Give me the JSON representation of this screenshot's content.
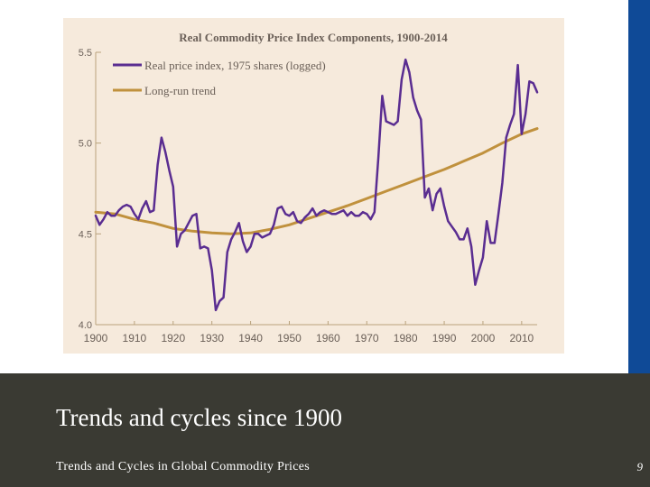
{
  "slide": {
    "title": "Trends and cycles since 1900",
    "subtitle": "Trends and Cycles in Global Commodity Prices",
    "page_number": "9"
  },
  "colors": {
    "panel_bg": "#f6eadc",
    "footer_bg": "#3a3a33",
    "accent_bar": "#0f4a97",
    "series_real": "#5a2d91",
    "series_trend": "#c0913d",
    "axis": "#b9a27c",
    "tick_text": "#6b6058"
  },
  "chart_data": {
    "type": "line",
    "title": "Real Commodity Price Index Components, 1900-2014",
    "xlabel": "",
    "ylabel": "",
    "xlim": [
      1900,
      2014
    ],
    "ylim": [
      4.0,
      5.5
    ],
    "xticks": [
      1900,
      1910,
      1920,
      1930,
      1940,
      1950,
      1960,
      1970,
      1980,
      1990,
      2000,
      2010
    ],
    "yticks": [
      4.0,
      4.5,
      5.0,
      5.5
    ],
    "ytick_labels": [
      "4.0",
      "4.5",
      "5.0",
      "5.5"
    ],
    "grid": false,
    "legend_position": "top-left",
    "series": [
      {
        "name": "Real price index, 1975 shares (logged)",
        "x": [
          1900,
          1901,
          1902,
          1903,
          1904,
          1905,
          1906,
          1907,
          1908,
          1909,
          1910,
          1911,
          1912,
          1913,
          1914,
          1915,
          1916,
          1917,
          1918,
          1919,
          1920,
          1921,
          1922,
          1923,
          1924,
          1925,
          1926,
          1927,
          1928,
          1929,
          1930,
          1931,
          1932,
          1933,
          1934,
          1935,
          1936,
          1937,
          1938,
          1939,
          1940,
          1941,
          1942,
          1943,
          1944,
          1945,
          1946,
          1947,
          1948,
          1949,
          1950,
          1951,
          1952,
          1953,
          1954,
          1955,
          1956,
          1957,
          1958,
          1959,
          1960,
          1961,
          1962,
          1963,
          1964,
          1965,
          1966,
          1967,
          1968,
          1969,
          1970,
          1971,
          1972,
          1973,
          1974,
          1975,
          1976,
          1977,
          1978,
          1979,
          1980,
          1981,
          1982,
          1983,
          1984,
          1985,
          1986,
          1987,
          1988,
          1989,
          1990,
          1991,
          1992,
          1993,
          1994,
          1995,
          1996,
          1997,
          1998,
          1999,
          2000,
          2001,
          2002,
          2003,
          2004,
          2005,
          2006,
          2007,
          2008,
          2009,
          2010,
          2011,
          2012,
          2013,
          2014
        ],
        "values": [
          4.6,
          4.55,
          4.58,
          4.62,
          4.6,
          4.6,
          4.63,
          4.65,
          4.66,
          4.65,
          4.61,
          4.58,
          4.64,
          4.68,
          4.62,
          4.63,
          4.88,
          5.03,
          4.95,
          4.85,
          4.76,
          4.43,
          4.5,
          4.52,
          4.56,
          4.6,
          4.61,
          4.42,
          4.43,
          4.42,
          4.3,
          4.08,
          4.13,
          4.15,
          4.4,
          4.47,
          4.51,
          4.56,
          4.46,
          4.4,
          4.43,
          4.5,
          4.5,
          4.48,
          4.49,
          4.5,
          4.55,
          4.64,
          4.65,
          4.61,
          4.6,
          4.62,
          4.57,
          4.56,
          4.59,
          4.61,
          4.64,
          4.6,
          4.62,
          4.63,
          4.62,
          4.61,
          4.61,
          4.62,
          4.63,
          4.6,
          4.62,
          4.6,
          4.6,
          4.62,
          4.61,
          4.58,
          4.62,
          4.92,
          5.26,
          5.12,
          5.11,
          5.1,
          5.12,
          5.35,
          5.46,
          5.39,
          5.25,
          5.18,
          5.13,
          4.7,
          4.75,
          4.63,
          4.72,
          4.75,
          4.65,
          4.57,
          4.54,
          4.51,
          4.47,
          4.47,
          4.53,
          4.43,
          4.22,
          4.3,
          4.37,
          4.57,
          4.45,
          4.45,
          4.61,
          4.78,
          5.03,
          5.1,
          5.16,
          5.43,
          5.05,
          5.16,
          5.34,
          5.33,
          5.28
        ],
        "color": "#5a2d91"
      },
      {
        "name": "Long-run trend",
        "x": [
          1900,
          1905,
          1910,
          1915,
          1920,
          1925,
          1930,
          1935,
          1940,
          1945,
          1950,
          1955,
          1960,
          1965,
          1970,
          1975,
          1980,
          1985,
          1990,
          1995,
          2000,
          2005,
          2010,
          2014
        ],
        "values": [
          4.62,
          4.61,
          4.58,
          4.56,
          4.53,
          4.515,
          4.505,
          4.5,
          4.505,
          4.525,
          4.55,
          4.585,
          4.62,
          4.655,
          4.695,
          4.735,
          4.775,
          4.815,
          4.855,
          4.9,
          4.945,
          5.0,
          5.05,
          5.08
        ],
        "color": "#c0913d"
      }
    ]
  }
}
